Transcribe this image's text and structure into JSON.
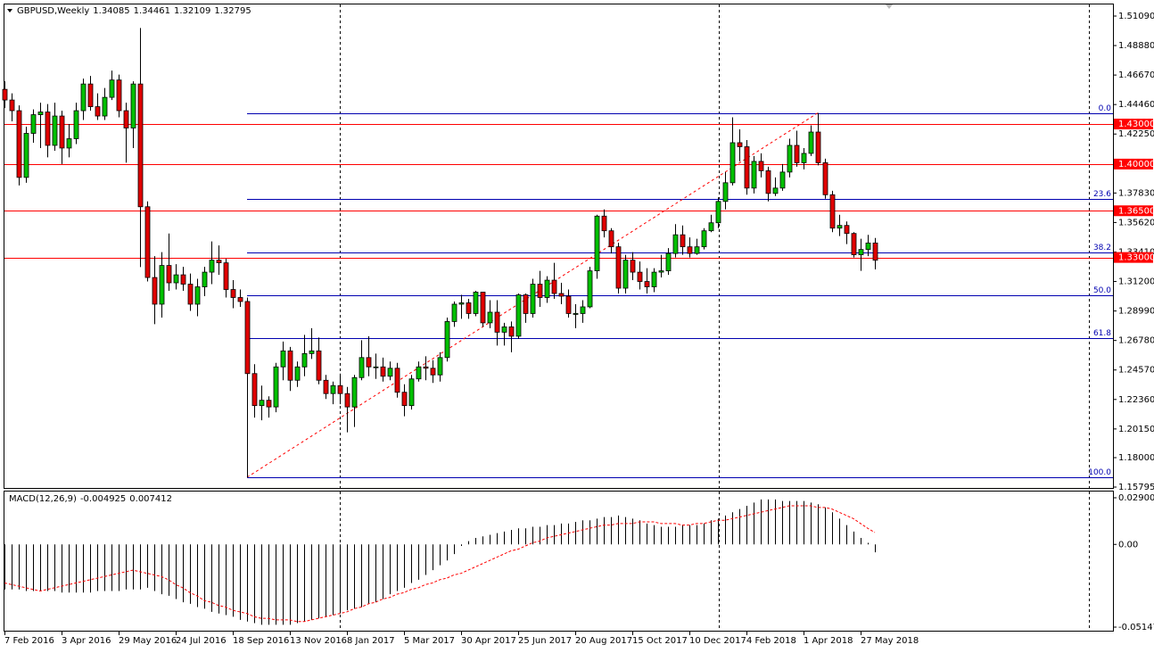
{
  "chart_data": [
    {
      "type": "candlestick",
      "title": "GBPUSD,Weekly",
      "categories": [
        "7 Feb 2016",
        null,
        null,
        null,
        null,
        null,
        null,
        null,
        "3 Apr 2016",
        null,
        null,
        null,
        null,
        null,
        null,
        null,
        "29 May 2016",
        null,
        null,
        null,
        null,
        null,
        null,
        null,
        "24 Jul 2016",
        null,
        null,
        null,
        null,
        null,
        null,
        null,
        "18 Sep 2016",
        null,
        null,
        null,
        null,
        null,
        null,
        null,
        "13 Nov 2016",
        null,
        null,
        null,
        null,
        null,
        null,
        null,
        "8 Jan 2017",
        null,
        null,
        null,
        null,
        null,
        null,
        null,
        "5 Mar 2017",
        null,
        null,
        null,
        null,
        null,
        null,
        null,
        "30 Apr 2017",
        null,
        null,
        null,
        null,
        null,
        null,
        null,
        "25 Jun 2017",
        null,
        null,
        null,
        null,
        null,
        null,
        null,
        "20 Aug 2017",
        null,
        null,
        null,
        null,
        null,
        null,
        null,
        "15 Oct 2017",
        null,
        null,
        null,
        null,
        null,
        null,
        null,
        "10 Dec 2017",
        null,
        null,
        null,
        null,
        null,
        null,
        null,
        "4 Feb 2018",
        null,
        null,
        null,
        null,
        null,
        null,
        null,
        "1 Apr 2018",
        null,
        null,
        null,
        null,
        null,
        null,
        null,
        "27 May 2018",
        null,
        null
      ],
      "open": [
        1.456,
        1.448,
        1.44,
        1.39,
        1.423,
        1.437,
        1.439,
        1.414,
        1.436,
        1.412,
        1.419,
        1.44,
        1.46,
        1.443,
        1.436,
        1.45,
        1.463,
        1.44,
        1.427,
        1.46,
        1.368,
        1.315,
        1.295,
        1.324,
        1.311,
        1.317,
        1.31,
        1.295,
        1.308,
        1.319,
        1.328,
        1.326,
        1.306,
        1.3,
        1.297,
        1.243,
        1.219,
        1.223,
        1.218,
        1.248,
        1.26,
        1.238,
        1.248,
        1.258,
        1.26,
        1.238,
        1.228,
        1.234,
        1.228,
        1.218,
        1.24,
        1.255,
        1.248,
        1.248,
        1.241,
        1.247,
        1.229,
        1.219,
        1.239,
        1.248,
        1.247,
        1.242,
        1.255,
        1.282,
        1.295,
        1.296,
        1.288,
        1.304,
        1.281,
        1.289,
        1.274,
        1.278,
        1.271,
        1.302,
        1.288,
        1.31,
        1.3,
        1.313,
        1.303,
        1.301,
        1.288,
        1.288,
        1.293,
        1.32,
        1.361,
        1.35,
        1.338,
        1.307,
        1.328,
        1.319,
        1.312,
        1.308,
        1.319,
        1.32,
        1.333,
        1.347,
        1.338,
        1.333,
        1.338,
        1.35,
        1.356,
        1.372,
        1.386,
        1.416,
        1.413,
        1.382,
        1.402,
        1.395,
        1.378,
        1.382,
        1.394,
        1.414,
        1.401,
        1.408,
        1.424,
        1.401,
        1.377,
        1.352,
        1.354,
        1.348,
        1.332,
        1.336,
        1.34085
      ],
      "high": [
        1.462,
        1.453,
        1.444,
        1.428,
        1.441,
        1.446,
        1.445,
        1.446,
        1.44,
        1.43,
        1.446,
        1.464,
        1.466,
        1.453,
        1.457,
        1.47,
        1.467,
        1.446,
        1.462,
        1.502,
        1.372,
        1.331,
        1.334,
        1.348,
        1.325,
        1.323,
        1.318,
        1.314,
        1.323,
        1.342,
        1.339,
        1.329,
        1.313,
        1.306,
        1.3,
        1.25,
        1.234,
        1.226,
        1.251,
        1.267,
        1.263,
        1.252,
        1.272,
        1.277,
        1.27,
        1.242,
        1.237,
        1.243,
        1.233,
        1.242,
        1.268,
        1.271,
        1.258,
        1.255,
        1.252,
        1.251,
        1.235,
        1.242,
        1.252,
        1.256,
        1.253,
        1.259,
        1.285,
        1.297,
        1.302,
        1.299,
        1.305,
        1.304,
        1.298,
        1.298,
        1.281,
        1.282,
        1.303,
        1.303,
        1.314,
        1.32,
        1.316,
        1.326,
        1.311,
        1.306,
        1.295,
        1.298,
        1.323,
        1.362,
        1.366,
        1.352,
        1.341,
        1.332,
        1.334,
        1.327,
        1.322,
        1.322,
        1.332,
        1.337,
        1.355,
        1.354,
        1.345,
        1.344,
        1.352,
        1.362,
        1.375,
        1.394,
        1.435,
        1.426,
        1.418,
        1.406,
        1.408,
        1.398,
        1.39,
        1.4,
        1.419,
        1.425,
        1.412,
        1.429,
        1.4383,
        1.404,
        1.38,
        1.362,
        1.357,
        1.349,
        1.344,
        1.347,
        1.34461
      ],
      "low": [
        1.442,
        1.432,
        1.384,
        1.386,
        1.416,
        1.412,
        1.405,
        1.41,
        1.4,
        1.405,
        1.415,
        1.433,
        1.44,
        1.433,
        1.433,
        1.448,
        1.435,
        1.401,
        1.412,
        1.3228,
        1.312,
        1.28,
        1.285,
        1.305,
        1.306,
        1.305,
        1.29,
        1.286,
        1.301,
        1.31,
        1.317,
        1.3,
        1.292,
        1.293,
        1.1653,
        1.21,
        1.208,
        1.21,
        1.214,
        1.238,
        1.23,
        1.233,
        1.241,
        1.254,
        1.235,
        1.224,
        1.22,
        1.22,
        1.199,
        1.203,
        1.238,
        1.241,
        1.239,
        1.237,
        1.238,
        1.225,
        1.211,
        1.216,
        1.237,
        1.238,
        1.236,
        1.237,
        1.252,
        1.278,
        1.284,
        1.284,
        1.286,
        1.278,
        1.277,
        1.264,
        1.264,
        1.259,
        1.269,
        1.281,
        1.285,
        1.293,
        1.296,
        1.299,
        1.295,
        1.285,
        1.277,
        1.281,
        1.292,
        1.314,
        1.345,
        1.333,
        1.303,
        1.303,
        1.313,
        1.306,
        1.303,
        1.304,
        1.315,
        1.317,
        1.33,
        1.332,
        1.33,
        1.332,
        1.336,
        1.349,
        1.352,
        1.366,
        1.384,
        1.402,
        1.377,
        1.378,
        1.39,
        1.372,
        1.376,
        1.38,
        1.39,
        1.398,
        1.396,
        1.406,
        1.399,
        1.374,
        1.349,
        1.346,
        1.34,
        1.33,
        1.32,
        1.331,
        1.32109
      ],
      "close": [
        1.448,
        1.44,
        1.39,
        1.423,
        1.437,
        1.439,
        1.414,
        1.436,
        1.412,
        1.419,
        1.44,
        1.46,
        1.443,
        1.436,
        1.45,
        1.463,
        1.44,
        1.427,
        1.46,
        1.368,
        1.315,
        1.295,
        1.324,
        1.311,
        1.317,
        1.31,
        1.295,
        1.308,
        1.319,
        1.328,
        1.326,
        1.306,
        1.3,
        1.297,
        1.243,
        1.219,
        1.223,
        1.218,
        1.248,
        1.26,
        1.238,
        1.248,
        1.258,
        1.26,
        1.238,
        1.228,
        1.234,
        1.228,
        1.218,
        1.24,
        1.255,
        1.248,
        1.248,
        1.241,
        1.247,
        1.229,
        1.219,
        1.239,
        1.248,
        1.247,
        1.242,
        1.255,
        1.282,
        1.295,
        1.296,
        1.288,
        1.304,
        1.281,
        1.289,
        1.274,
        1.278,
        1.271,
        1.302,
        1.288,
        1.31,
        1.3,
        1.313,
        1.303,
        1.301,
        1.288,
        1.288,
        1.293,
        1.32,
        1.361,
        1.35,
        1.338,
        1.307,
        1.328,
        1.319,
        1.312,
        1.308,
        1.319,
        1.32,
        1.333,
        1.347,
        1.338,
        1.333,
        1.338,
        1.35,
        1.356,
        1.372,
        1.386,
        1.416,
        1.413,
        1.382,
        1.402,
        1.395,
        1.378,
        1.382,
        1.394,
        1.414,
        1.401,
        1.408,
        1.424,
        1.401,
        1.377,
        1.352,
        1.354,
        1.348,
        1.332,
        1.336,
        1.34085,
        1.32795
      ],
      "up_color": "#00c000",
      "down_color": "#e00000",
      "ylim": [
        1.15795,
        1.5109
      ],
      "yticks": [
        {
          "value": 1.5109,
          "label": "1.51090"
        },
        {
          "value": 1.4888,
          "label": "1.48880"
        },
        {
          "value": 1.4667,
          "label": "1.46670"
        },
        {
          "value": 1.4446,
          "label": "1.44460"
        },
        {
          "value": 1.4225,
          "label": "1.42250"
        },
        {
          "value": 1.3783,
          "label": "1.37830"
        },
        {
          "value": 1.3562,
          "label": "1.35620"
        },
        {
          "value": 1.3341,
          "label": "1.33410"
        },
        {
          "value": 1.312,
          "label": "1.31200"
        },
        {
          "value": 1.2899,
          "label": "1.28990"
        },
        {
          "value": 1.2678,
          "label": "1.26780"
        },
        {
          "value": 1.2457,
          "label": "1.24570"
        },
        {
          "value": 1.2236,
          "label": "1.22360"
        },
        {
          "value": 1.2015,
          "label": "1.20150"
        },
        {
          "value": 1.18,
          "label": "1.18000"
        },
        {
          "value": 1.15795,
          "label": "1.15795"
        }
      ],
      "hlines": [
        {
          "value": 1.43,
          "label": "1.43000"
        },
        {
          "value": 1.4,
          "label": "1.40000"
        },
        {
          "value": 1.365,
          "label": "1.36500"
        },
        {
          "value": 1.33,
          "label": "1.33000"
        }
      ],
      "hline_color": "#ff0000",
      "fibonacci": {
        "low": 1.1653,
        "high": 1.4383,
        "color": "#0000b0",
        "levels": [
          {
            "value": 0,
            "label": "0.0"
          },
          23.6,
          38.2,
          {
            "value": 50,
            "label": "50.0"
          },
          61.8,
          {
            "value": 100,
            "label": "100.0"
          }
        ]
      }
    },
    {
      "type": "macd",
      "title": "MACD(12,26,9)",
      "values": [
        -0.028,
        -0.028,
        -0.028,
        -0.029,
        -0.029,
        -0.029,
        -0.029,
        -0.029,
        -0.03,
        -0.03,
        -0.03,
        -0.03,
        -0.03,
        -0.029,
        -0.029,
        -0.029,
        -0.029,
        -0.028,
        -0.028,
        -0.028,
        -0.027,
        -0.029,
        -0.031,
        -0.032,
        -0.034,
        -0.036,
        -0.037,
        -0.039,
        -0.04,
        -0.042,
        -0.043,
        -0.044,
        -0.045,
        -0.047,
        -0.048,
        -0.049,
        -0.05,
        -0.05,
        -0.05,
        -0.05,
        -0.05,
        -0.049,
        -0.048,
        -0.047,
        -0.046,
        -0.045,
        -0.044,
        -0.043,
        -0.041,
        -0.04,
        -0.039,
        -0.037,
        -0.036,
        -0.034,
        -0.031,
        -0.029,
        -0.027,
        -0.024,
        -0.022,
        -0.019,
        -0.016,
        -0.013,
        -0.01,
        -0.006,
        -0.001,
        0.002,
        0.004,
        0.005,
        0.006,
        0.007,
        0.008,
        0.009,
        0.01,
        0.01,
        0.011,
        0.011,
        0.012,
        0.012,
        0.013,
        0.013,
        0.014,
        0.015,
        0.015,
        0.016,
        0.017,
        0.017,
        0.018,
        0.017,
        0.016,
        0.015,
        0.013,
        0.012,
        0.011,
        0.011,
        0.011,
        0.012,
        0.012,
        0.012,
        0.013,
        0.015,
        0.016,
        0.018,
        0.02,
        0.022,
        0.024,
        0.026,
        0.028,
        0.028,
        0.028,
        0.027,
        0.027,
        0.027,
        0.027,
        0.026,
        0.025,
        0.023,
        0.02,
        0.016,
        0.012,
        0.008,
        0.004,
        0.001,
        -0.004925
      ],
      "signal": [
        -0.024,
        -0.025,
        -0.026,
        -0.027,
        -0.028,
        -0.029,
        -0.028,
        -0.027,
        -0.026,
        -0.025,
        -0.024,
        -0.023,
        -0.022,
        -0.021,
        -0.02,
        -0.019,
        -0.018,
        -0.017,
        -0.016,
        -0.017,
        -0.018,
        -0.019,
        -0.02,
        -0.022,
        -0.025,
        -0.027,
        -0.03,
        -0.032,
        -0.035,
        -0.036,
        -0.038,
        -0.039,
        -0.041,
        -0.042,
        -0.043,
        -0.045,
        -0.046,
        -0.046,
        -0.047,
        -0.047,
        -0.047,
        -0.048,
        -0.048,
        -0.047,
        -0.046,
        -0.045,
        -0.044,
        -0.043,
        -0.042,
        -0.04,
        -0.039,
        -0.037,
        -0.036,
        -0.034,
        -0.033,
        -0.031,
        -0.03,
        -0.028,
        -0.027,
        -0.025,
        -0.024,
        -0.022,
        -0.021,
        -0.019,
        -0.018,
        -0.016,
        -0.014,
        -0.012,
        -0.01,
        -0.008,
        -0.006,
        -0.004,
        -0.003,
        -0.001,
        0.001,
        0.002,
        0.004,
        0.005,
        0.006,
        0.007,
        0.008,
        0.009,
        0.01,
        0.011,
        0.012,
        0.012,
        0.013,
        0.013,
        0.013,
        0.014,
        0.014,
        0.014,
        0.013,
        0.013,
        0.013,
        0.012,
        0.012,
        0.013,
        0.013,
        0.014,
        0.015,
        0.015,
        0.016,
        0.017,
        0.018,
        0.019,
        0.02,
        0.021,
        0.022,
        0.023,
        0.024,
        0.024,
        0.024,
        0.024,
        0.023,
        0.023,
        0.022,
        0.02,
        0.018,
        0.016,
        0.013,
        0.01,
        0.007412
      ],
      "color": "#000000",
      "signal_color": "#ff0000",
      "ylim": [
        -0.051476,
        0.029008
      ],
      "yticks": [
        0.029008,
        {
          "value": 0,
          "label": "0.00"
        },
        -0.051476
      ]
    }
  ]
}
